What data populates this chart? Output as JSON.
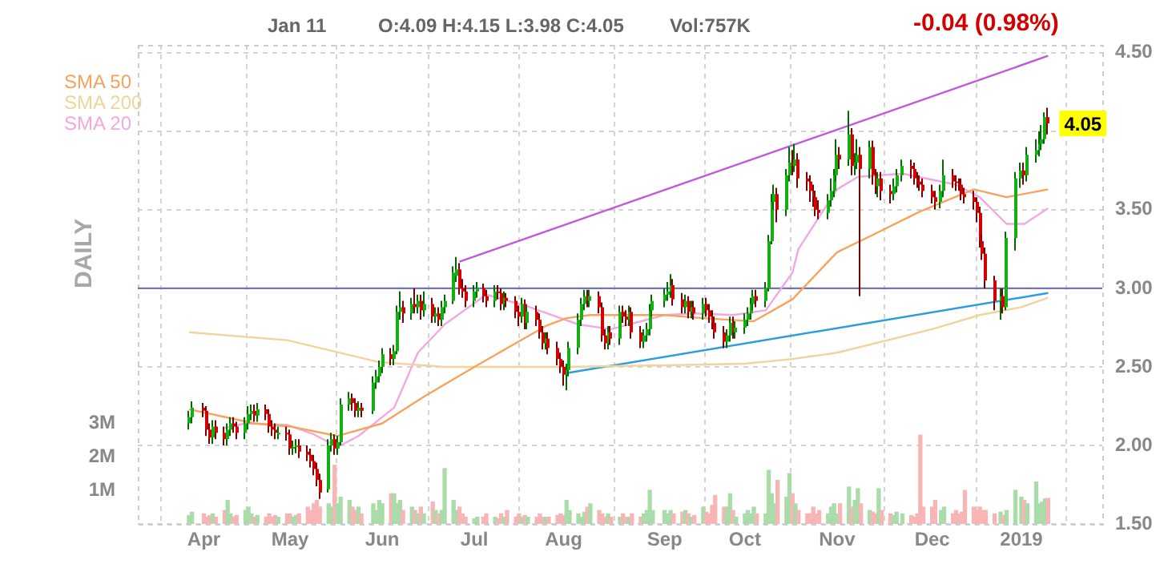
{
  "chart_data": {
    "type": "candlestick",
    "annotations": [
      "Jan 11",
      "O:4.09  H:4.15  L:3.98  C:4.05",
      "Vol:757K",
      "-0.04 (0.98%)",
      "DAILY",
      {
        "text": "4.05",
        "x": "2019-01-11",
        "y": 4.05
      }
    ],
    "x": [
      "2018-03-28",
      "2018-03-29",
      "2018-04-02",
      "2018-04-03",
      "2018-04-04",
      "2018-04-05",
      "2018-04-06",
      "2018-04-09",
      "2018-04-10",
      "2018-04-11",
      "2018-04-12",
      "2018-04-13",
      "2018-04-16",
      "2018-04-17",
      "2018-04-18",
      "2018-04-19",
      "2018-04-20",
      "2018-04-23",
      "2018-04-24",
      "2018-04-25",
      "2018-04-26",
      "2018-04-27",
      "2018-04-30",
      "2018-05-01",
      "2018-05-02",
      "2018-05-03",
      "2018-05-04",
      "2018-05-07",
      "2018-05-08",
      "2018-05-09",
      "2018-05-10",
      "2018-05-11",
      "2018-05-14",
      "2018-05-15",
      "2018-05-16",
      "2018-05-17",
      "2018-05-18",
      "2018-05-21",
      "2018-05-22",
      "2018-05-23",
      "2018-05-24",
      "2018-05-25",
      "2018-05-29",
      "2018-05-30",
      "2018-05-31",
      "2018-06-01",
      "2018-06-04",
      "2018-06-05",
      "2018-06-06",
      "2018-06-07",
      "2018-06-08",
      "2018-06-11",
      "2018-06-12",
      "2018-06-13",
      "2018-06-14",
      "2018-06-15",
      "2018-06-18",
      "2018-06-19",
      "2018-06-20",
      "2018-06-21",
      "2018-06-22",
      "2018-06-25",
      "2018-06-26",
      "2018-06-27",
      "2018-06-28",
      "2018-06-29",
      "2018-07-02",
      "2018-07-03",
      "2018-07-05",
      "2018-07-06",
      "2018-07-09",
      "2018-07-10",
      "2018-07-11",
      "2018-07-12",
      "2018-07-13",
      "2018-07-16",
      "2018-07-17",
      "2018-07-18",
      "2018-07-19",
      "2018-07-20",
      "2018-07-23",
      "2018-07-24",
      "2018-07-25",
      "2018-07-26",
      "2018-07-27",
      "2018-07-30",
      "2018-07-31",
      "2018-08-01",
      "2018-08-02",
      "2018-08-03",
      "2018-08-06",
      "2018-08-07",
      "2018-08-08",
      "2018-08-09",
      "2018-08-10",
      "2018-08-13",
      "2018-08-14",
      "2018-08-15",
      "2018-08-16",
      "2018-08-17",
      "2018-08-20",
      "2018-08-21",
      "2018-08-22",
      "2018-08-23",
      "2018-08-24",
      "2018-08-27",
      "2018-08-28",
      "2018-08-29",
      "2018-08-30",
      "2018-08-31",
      "2018-09-04",
      "2018-09-05",
      "2018-09-06",
      "2018-09-07",
      "2018-09-10",
      "2018-09-11",
      "2018-09-12",
      "2018-09-13",
      "2018-09-14",
      "2018-09-17",
      "2018-09-18",
      "2018-09-19",
      "2018-09-20",
      "2018-09-21",
      "2018-09-24",
      "2018-09-25",
      "2018-09-26",
      "2018-09-27",
      "2018-09-28",
      "2018-10-01",
      "2018-10-02",
      "2018-10-03",
      "2018-10-04",
      "2018-10-05",
      "2018-10-08",
      "2018-10-09",
      "2018-10-10",
      "2018-10-11",
      "2018-10-12",
      "2018-10-15",
      "2018-10-16",
      "2018-10-17",
      "2018-10-18",
      "2018-10-19",
      "2018-10-22",
      "2018-10-23",
      "2018-10-24",
      "2018-10-25",
      "2018-10-26",
      "2018-10-29",
      "2018-10-30",
      "2018-10-31",
      "2018-11-01",
      "2018-11-02",
      "2018-11-05",
      "2018-11-06",
      "2018-11-07",
      "2018-11-08",
      "2018-11-09",
      "2018-11-12",
      "2018-11-13",
      "2018-11-14",
      "2018-11-15",
      "2018-11-16",
      "2018-11-19",
      "2018-11-20",
      "2018-11-21",
      "2018-11-23",
      "2018-11-26",
      "2018-11-27",
      "2018-11-28",
      "2018-11-29",
      "2018-11-30",
      "2018-12-03",
      "2018-12-04",
      "2018-12-06",
      "2018-12-07",
      "2018-12-10",
      "2018-12-11",
      "2018-12-12",
      "2018-12-13",
      "2018-12-14",
      "2018-12-17",
      "2018-12-18",
      "2018-12-19",
      "2018-12-20",
      "2018-12-21",
      "2018-12-24",
      "2018-12-26",
      "2018-12-27",
      "2018-12-28",
      "2018-12-31",
      "2019-01-02",
      "2019-01-03",
      "2019-01-04",
      "2019-01-07",
      "2019-01-08",
      "2019-01-09",
      "2019-01-10",
      "2019-01-11"
    ],
    "ohlc": [
      [
        2.14,
        2.22,
        2.1,
        2.18
      ],
      [
        2.18,
        2.28,
        2.14,
        2.24
      ],
      [
        2.24,
        2.27,
        2.18,
        2.22
      ],
      [
        2.22,
        2.25,
        2.06,
        2.1
      ],
      [
        2.1,
        2.14,
        2.01,
        2.05
      ],
      [
        2.05,
        2.16,
        2.01,
        2.12
      ],
      [
        2.12,
        2.16,
        2.04,
        2.08
      ],
      [
        2.08,
        2.12,
        2.0,
        2.04
      ],
      [
        2.04,
        2.14,
        2.0,
        2.1
      ],
      [
        2.1,
        2.18,
        2.06,
        2.14
      ],
      [
        2.14,
        2.18,
        2.08,
        2.12
      ],
      [
        2.12,
        2.15,
        2.04,
        2.08
      ],
      [
        2.08,
        2.18,
        2.04,
        2.14
      ],
      [
        2.14,
        2.25,
        2.1,
        2.2
      ],
      [
        2.2,
        2.26,
        2.16,
        2.22
      ],
      [
        2.22,
        2.26,
        2.15,
        2.19
      ],
      [
        2.19,
        2.27,
        2.15,
        2.23
      ],
      [
        2.23,
        2.26,
        2.16,
        2.2
      ],
      [
        2.2,
        2.23,
        2.08,
        2.12
      ],
      [
        2.12,
        2.16,
        2.06,
        2.1
      ],
      [
        2.1,
        2.14,
        2.04,
        2.08
      ],
      [
        2.08,
        2.12,
        2.04,
        2.08
      ],
      [
        2.08,
        2.12,
        2.03,
        2.07
      ],
      [
        2.07,
        2.1,
        1.94,
        1.98
      ],
      [
        1.98,
        2.03,
        1.94,
        1.99
      ],
      [
        1.99,
        2.04,
        1.95,
        2.0
      ],
      [
        2.0,
        2.04,
        1.92,
        1.96
      ],
      [
        1.96,
        2.0,
        1.9,
        1.94
      ],
      [
        1.94,
        1.98,
        1.86,
        1.9
      ],
      [
        1.9,
        1.94,
        1.81,
        1.85
      ],
      [
        1.85,
        1.89,
        1.74,
        1.78
      ],
      [
        1.78,
        1.82,
        1.66,
        1.7
      ],
      [
        1.72,
        2.04,
        1.7,
        2.0
      ],
      [
        2.0,
        2.08,
        1.96,
        2.04
      ],
      [
        2.04,
        2.07,
        1.94,
        1.98
      ],
      [
        1.98,
        2.06,
        1.94,
        2.02
      ],
      [
        2.02,
        2.3,
        2.0,
        2.26
      ],
      [
        2.26,
        2.34,
        2.22,
        2.3
      ],
      [
        2.3,
        2.33,
        2.22,
        2.27
      ],
      [
        2.27,
        2.3,
        2.18,
        2.22
      ],
      [
        2.22,
        2.28,
        2.18,
        2.24
      ],
      [
        2.24,
        2.27,
        2.18,
        2.22
      ],
      [
        2.22,
        2.44,
        2.2,
        2.4
      ],
      [
        2.4,
        2.48,
        2.36,
        2.44
      ],
      [
        2.44,
        2.54,
        2.4,
        2.5
      ],
      [
        2.5,
        2.62,
        2.46,
        2.58
      ],
      [
        2.58,
        2.62,
        2.51,
        2.55
      ],
      [
        2.55,
        2.64,
        2.51,
        2.6
      ],
      [
        2.6,
        2.89,
        2.58,
        2.85
      ],
      [
        2.85,
        2.98,
        2.8,
        2.88
      ],
      [
        2.88,
        2.92,
        2.78,
        2.84
      ],
      [
        2.84,
        2.94,
        2.8,
        2.9
      ],
      [
        2.9,
        3.0,
        2.84,
        2.88
      ],
      [
        2.88,
        2.96,
        2.84,
        2.92
      ],
      [
        2.92,
        2.96,
        2.8,
        2.86
      ],
      [
        2.86,
        2.98,
        2.82,
        2.9
      ],
      [
        2.9,
        2.94,
        2.78,
        2.82
      ],
      [
        2.82,
        2.88,
        2.78,
        2.84
      ],
      [
        2.84,
        2.88,
        2.76,
        2.8
      ],
      [
        2.8,
        2.92,
        2.76,
        2.88
      ],
      [
        2.88,
        2.96,
        2.84,
        2.92
      ],
      [
        2.92,
        3.14,
        2.9,
        3.1
      ],
      [
        3.08,
        3.2,
        3.04,
        3.12
      ],
      [
        3.12,
        3.16,
        2.96,
        3.0
      ],
      [
        3.0,
        3.06,
        2.94,
        2.98
      ],
      [
        2.98,
        3.02,
        2.88,
        2.92
      ],
      [
        2.92,
        3.02,
        2.88,
        2.98
      ],
      [
        2.98,
        3.04,
        2.94,
        3.0
      ],
      [
        3.0,
        3.03,
        2.91,
        2.95
      ],
      [
        2.95,
        2.99,
        2.88,
        2.92
      ],
      [
        2.92,
        3.02,
        2.88,
        2.98
      ],
      [
        2.98,
        3.02,
        2.93,
        2.97
      ],
      [
        2.97,
        3.0,
        2.86,
        2.9
      ],
      [
        2.9,
        2.98,
        2.86,
        2.94
      ],
      [
        2.94,
        2.97,
        2.88,
        2.92
      ],
      [
        2.92,
        2.95,
        2.81,
        2.85
      ],
      [
        2.85,
        2.89,
        2.76,
        2.82
      ],
      [
        2.82,
        2.94,
        2.78,
        2.9
      ],
      [
        2.9,
        2.93,
        2.74,
        2.78
      ],
      [
        2.78,
        2.89,
        2.74,
        2.85
      ],
      [
        2.85,
        2.89,
        2.76,
        2.8
      ],
      [
        2.8,
        2.84,
        2.68,
        2.72
      ],
      [
        2.72,
        2.76,
        2.61,
        2.65
      ],
      [
        2.65,
        2.72,
        2.61,
        2.68
      ],
      [
        2.68,
        2.72,
        2.58,
        2.62
      ],
      [
        2.62,
        2.66,
        2.51,
        2.55
      ],
      [
        2.55,
        2.59,
        2.46,
        2.5
      ],
      [
        2.5,
        2.54,
        2.38,
        2.45
      ],
      [
        2.45,
        2.52,
        2.35,
        2.48
      ],
      [
        2.48,
        2.66,
        2.44,
        2.62
      ],
      [
        2.62,
        2.84,
        2.58,
        2.8
      ],
      [
        2.8,
        2.94,
        2.76,
        2.9
      ],
      [
        2.9,
        2.99,
        2.86,
        2.95
      ],
      [
        2.95,
        2.99,
        2.88,
        2.92
      ],
      [
        2.92,
        2.99,
        2.88,
        2.95
      ],
      [
        2.95,
        2.98,
        2.84,
        2.88
      ],
      [
        2.88,
        2.91,
        2.66,
        2.7
      ],
      [
        2.7,
        2.74,
        2.61,
        2.65
      ],
      [
        2.65,
        2.76,
        2.61,
        2.72
      ],
      [
        2.72,
        2.76,
        2.64,
        2.68
      ],
      [
        2.68,
        2.89,
        2.64,
        2.85
      ],
      [
        2.85,
        2.89,
        2.78,
        2.82
      ],
      [
        2.82,
        2.86,
        2.76,
        2.8
      ],
      [
        2.8,
        2.89,
        2.76,
        2.85
      ],
      [
        2.85,
        2.88,
        2.68,
        2.72
      ],
      [
        2.72,
        2.76,
        2.62,
        2.66
      ],
      [
        2.66,
        2.74,
        2.62,
        2.7
      ],
      [
        2.7,
        2.78,
        2.66,
        2.74
      ],
      [
        2.74,
        2.9,
        2.7,
        2.86
      ],
      [
        2.86,
        2.96,
        2.82,
        2.92
      ],
      [
        2.92,
        3.0,
        2.88,
        2.96
      ],
      [
        2.96,
        3.04,
        2.92,
        2.98
      ],
      [
        2.98,
        3.09,
        2.94,
        3.02
      ],
      [
        3.02,
        3.06,
        2.89,
        2.93
      ],
      [
        2.93,
        2.97,
        2.84,
        2.88
      ],
      [
        2.88,
        2.96,
        2.84,
        2.92
      ],
      [
        2.92,
        2.95,
        2.81,
        2.85
      ],
      [
        2.85,
        2.92,
        2.81,
        2.88
      ],
      [
        2.88,
        2.92,
        2.8,
        2.84
      ],
      [
        2.84,
        2.94,
        2.8,
        2.9
      ],
      [
        2.9,
        2.94,
        2.82,
        2.86
      ],
      [
        2.86,
        2.9,
        2.78,
        2.82
      ],
      [
        2.82,
        2.86,
        2.74,
        2.78
      ],
      [
        2.78,
        2.82,
        2.68,
        2.72
      ],
      [
        2.72,
        2.76,
        2.62,
        2.66
      ],
      [
        2.66,
        2.74,
        2.62,
        2.7
      ],
      [
        2.7,
        2.82,
        2.66,
        2.78
      ],
      [
        2.78,
        2.82,
        2.68,
        2.72
      ],
      [
        2.72,
        2.79,
        2.68,
        2.75
      ],
      [
        2.75,
        2.84,
        2.71,
        2.8
      ],
      [
        2.8,
        2.88,
        2.76,
        2.84
      ],
      [
        2.84,
        2.94,
        2.8,
        2.9
      ],
      [
        2.9,
        2.99,
        2.86,
        2.95
      ],
      [
        2.95,
        2.99,
        2.88,
        2.92
      ],
      [
        2.92,
        3.04,
        2.88,
        3.0
      ],
      [
        3.0,
        3.34,
        2.98,
        3.3
      ],
      [
        3.3,
        3.6,
        3.28,
        3.55
      ],
      [
        3.55,
        3.66,
        3.5,
        3.6
      ],
      [
        3.6,
        3.64,
        3.42,
        3.5
      ],
      [
        3.5,
        3.76,
        3.46,
        3.72
      ],
      [
        3.72,
        3.9,
        3.68,
        3.8
      ],
      [
        3.8,
        3.88,
        3.72,
        3.78
      ],
      [
        3.78,
        3.92,
        3.74,
        3.82
      ],
      [
        3.82,
        3.86,
        3.64,
        3.7
      ],
      [
        3.7,
        3.74,
        3.62,
        3.68
      ],
      [
        3.68,
        3.72,
        3.55,
        3.62
      ],
      [
        3.62,
        3.66,
        3.52,
        3.58
      ],
      [
        3.58,
        3.62,
        3.46,
        3.5
      ],
      [
        3.5,
        3.56,
        3.44,
        3.48
      ],
      [
        3.48,
        3.6,
        3.44,
        3.56
      ],
      [
        3.56,
        3.7,
        3.52,
        3.62
      ],
      [
        3.62,
        3.76,
        3.58,
        3.72
      ],
      [
        3.72,
        3.95,
        3.68,
        3.85
      ],
      [
        3.85,
        3.9,
        3.76,
        3.82
      ],
      [
        3.82,
        4.13,
        3.78,
        3.98
      ],
      [
        3.98,
        4.02,
        3.72,
        3.78
      ],
      [
        3.78,
        3.86,
        3.72,
        3.8
      ],
      [
        3.8,
        3.95,
        3.76,
        3.85
      ],
      [
        3.85,
        3.9,
        2.95,
        3.76
      ],
      [
        3.76,
        3.94,
        3.7,
        3.9
      ],
      [
        3.9,
        3.94,
        3.66,
        3.72
      ],
      [
        3.72,
        3.76,
        3.6,
        3.65
      ],
      [
        3.65,
        3.74,
        3.58,
        3.7
      ],
      [
        3.7,
        3.74,
        3.56,
        3.62
      ],
      [
        3.62,
        3.66,
        3.54,
        3.6
      ],
      [
        3.6,
        3.7,
        3.56,
        3.65
      ],
      [
        3.65,
        3.76,
        3.61,
        3.72
      ],
      [
        3.72,
        3.82,
        3.68,
        3.78
      ],
      [
        3.78,
        3.82,
        3.7,
        3.76
      ],
      [
        3.76,
        3.8,
        3.66,
        3.7
      ],
      [
        3.7,
        3.74,
        3.64,
        3.68
      ],
      [
        3.68,
        3.72,
        3.62,
        3.66
      ],
      [
        3.66,
        3.7,
        3.58,
        3.62
      ],
      [
        3.62,
        3.66,
        3.54,
        3.58
      ],
      [
        3.58,
        3.62,
        3.5,
        3.55
      ],
      [
        3.55,
        3.66,
        3.51,
        3.62
      ],
      [
        3.62,
        3.82,
        3.58,
        3.72
      ],
      [
        3.72,
        3.76,
        3.64,
        3.68
      ],
      [
        3.68,
        3.72,
        3.62,
        3.67
      ],
      [
        3.67,
        3.7,
        3.62,
        3.66
      ],
      [
        3.66,
        3.7,
        3.56,
        3.6
      ],
      [
        3.6,
        3.64,
        3.54,
        3.58
      ],
      [
        3.58,
        3.62,
        3.5,
        3.55
      ],
      [
        3.55,
        3.58,
        3.42,
        3.48
      ],
      [
        3.48,
        3.52,
        3.26,
        3.3
      ],
      [
        3.3,
        3.34,
        3.18,
        3.22
      ],
      [
        3.22,
        3.26,
        3.0,
        3.05
      ],
      [
        3.05,
        3.08,
        2.86,
        2.92
      ],
      [
        2.92,
        3.0,
        2.8,
        2.95
      ],
      [
        2.95,
        3.0,
        2.84,
        2.88
      ],
      [
        2.88,
        3.36,
        2.86,
        3.32
      ],
      [
        3.32,
        3.74,
        3.24,
        3.7
      ],
      [
        3.7,
        3.8,
        3.64,
        3.75
      ],
      [
        3.75,
        3.8,
        3.66,
        3.72
      ],
      [
        3.72,
        3.9,
        3.68,
        3.85
      ],
      [
        3.85,
        3.95,
        3.8,
        3.88
      ],
      [
        3.88,
        4.0,
        3.84,
        3.92
      ],
      [
        3.92,
        4.04,
        3.88,
        3.95
      ],
      [
        3.95,
        4.12,
        3.92,
        4.09
      ],
      [
        4.09,
        4.15,
        3.98,
        4.05
      ]
    ],
    "series": [
      {
        "name": "SMA 50",
        "type": "line",
        "color": "#f7a35c",
        "x": [
          "2018-03-28",
          "2018-04-19",
          "2018-05-01",
          "2018-05-17",
          "2018-06-01",
          "2018-06-15",
          "2018-07-02",
          "2018-07-26",
          "2018-08-02",
          "2018-08-10",
          "2018-09-04",
          "2018-09-17",
          "2018-10-04",
          "2018-10-17",
          "2018-11-01",
          "2018-11-13",
          "2018-11-29",
          "2018-12-17",
          "2018-12-28",
          "2019-01-11"
        ],
        "values": [
          2.23,
          2.14,
          2.12,
          2.06,
          2.14,
          2.31,
          2.5,
          2.76,
          2.81,
          2.83,
          2.83,
          2.81,
          2.79,
          2.93,
          3.23,
          3.34,
          3.49,
          3.63,
          3.58,
          3.63
        ]
      },
      {
        "name": "SMA 200",
        "type": "line",
        "color": "#f0d49c",
        "x": [
          "2018-03-28",
          "2018-04-30",
          "2018-05-31",
          "2018-06-22",
          "2018-08-01",
          "2018-09-04",
          "2018-10-01",
          "2018-10-17",
          "2018-11-01",
          "2018-12-03",
          "2018-12-19",
          "2019-01-02",
          "2019-01-11"
        ],
        "values": [
          2.72,
          2.67,
          2.53,
          2.5,
          2.5,
          2.51,
          2.52,
          2.55,
          2.59,
          2.74,
          2.83,
          2.88,
          2.94
        ]
      },
      {
        "name": "SMA 20",
        "type": "line",
        "color": "#f2a8e0",
        "x": [
          "2018-04-09",
          "2018-04-16",
          "2018-04-30",
          "2018-05-09",
          "2018-05-17",
          "2018-05-24",
          "2018-06-05",
          "2018-06-13",
          "2018-06-22",
          "2018-07-06",
          "2018-07-19",
          "2018-08-06",
          "2018-08-17",
          "2018-09-04",
          "2018-09-14",
          "2018-09-27",
          "2018-10-08",
          "2018-10-17",
          "2018-10-19",
          "2018-11-01",
          "2018-11-08",
          "2018-11-23",
          "2018-12-11",
          "2018-12-19",
          "2018-12-28",
          "2019-01-03",
          "2019-01-11"
        ],
        "values": [
          2.11,
          2.14,
          2.13,
          2.07,
          1.99,
          2.06,
          2.24,
          2.59,
          2.77,
          2.96,
          2.89,
          2.77,
          2.74,
          2.83,
          2.84,
          2.83,
          2.86,
          3.1,
          3.25,
          3.63,
          3.71,
          3.73,
          3.66,
          3.58,
          3.41,
          3.41,
          3.51
        ]
      },
      {
        "type": "line",
        "color": "#c05ad8",
        "x": [
          "2018-06-27",
          "2019-01-11"
        ],
        "values": [
          3.17,
          4.48
        ]
      },
      {
        "type": "line",
        "color": "#2a9ee0",
        "x": [
          "2018-08-02",
          "2019-01-11"
        ],
        "values": [
          2.46,
          2.97
        ]
      },
      {
        "type": "bar",
        "axis": "y2",
        "values": [
          0.25,
          0.35,
          0.3,
          0.2,
          0.25,
          0.3,
          0.2,
          0.4,
          0.7,
          0.3,
          0.2,
          0.25,
          0.4,
          0.5,
          0.3,
          0.2,
          0.25,
          0.2,
          0.3,
          0.2,
          0.25,
          0.2,
          0.3,
          0.3,
          0.2,
          0.25,
          0.3,
          0.5,
          0.4,
          0.6,
          0.7,
          0.5,
          0.6,
          0.5,
          1.75,
          0.6,
          0.8,
          0.7,
          0.5,
          0.4,
          0.5,
          0.3,
          0.6,
          0.4,
          0.7,
          0.6,
          0.9,
          0.9,
          0.6,
          0.7,
          0.4,
          0.5,
          0.4,
          0.3,
          0.5,
          0.3,
          0.65,
          0.4,
          0.3,
          0.4,
          1.65,
          0.7,
          0.4,
          0.5,
          0.3,
          0.2,
          0.15,
          0.2,
          0.2,
          0.3,
          0.2,
          0.15,
          0.3,
          0.2,
          0.4,
          0.2,
          0.3,
          0.2,
          0.25,
          0.2,
          0.2,
          0.3,
          0.2,
          0.2,
          0.2,
          0.25,
          0.3,
          0.25,
          0.7,
          0.4,
          0.3,
          0.2,
          0.35,
          0.5,
          0.6,
          0.4,
          0.3,
          0.2,
          0.3,
          0.2,
          0.2,
          0.3,
          0.2,
          0.2,
          0.3,
          0.2,
          0.3,
          0.4,
          1.0,
          0.4,
          0.4,
          0.3,
          0.4,
          0.3,
          0.35,
          0.4,
          0.3,
          0.2,
          0.25,
          0.5,
          0.35,
          0.3,
          0.55,
          0.85,
          0.5,
          0.5,
          0.9,
          0.4,
          0.2,
          0.3,
          0.4,
          0.3,
          0.5,
          0.3,
          0.3,
          1.6,
          0.9,
          0.6,
          1.3,
          0.8,
          1.5,
          0.9,
          0.6,
          0.4,
          0.3,
          0.3,
          0.5,
          0.3,
          0.4,
          0.3,
          0.5,
          0.6,
          0.3,
          0.6,
          1.1,
          0.5,
          0.7,
          1.05,
          0.6,
          0.4,
          0.35,
          0.3,
          1.05,
          0.4,
          0.3,
          0.25,
          0.35,
          0.3,
          0.25,
          0.2,
          0.3,
          2.65,
          0.5,
          0.5,
          0.7,
          0.4,
          0.5,
          0.3,
          0.4,
          0.3,
          0.35,
          1.0,
          0.5,
          0.4,
          0.5,
          0.4,
          0.4,
          0.3,
          0.35,
          0.25,
          0.4,
          1.0,
          0.8,
          0.7,
          0.6,
          1.25,
          0.6,
          0.65,
          0.75,
          0.76
        ],
        "colors": [
          "#a9dca9",
          "#a9dca9",
          "#f7b5b5",
          "#f7b5b5",
          "#f7b5b5",
          "#a9dca9",
          "#f7b5b5",
          "#f7b5b5",
          "#a9dca9",
          "#a9dca9",
          "#f7b5b5",
          "#f7b5b5",
          "#a9dca9",
          "#a9dca9",
          "#a9dca9",
          "#f7b5b5",
          "#a9dca9",
          "#f7b5b5",
          "#f7b5b5",
          "#f7b5b5",
          "#f7b5b5",
          "#a9dca9",
          "#f7b5b5",
          "#f7b5b5",
          "#a9dca9",
          "#a9dca9",
          "#f7b5b5",
          "#f7b5b5",
          "#f7b5b5",
          "#f7b5b5",
          "#f7b5b5",
          "#f7b5b5",
          "#a9dca9",
          "#a9dca9",
          "#f7b5b5",
          "#a9dca9",
          "#a9dca9",
          "#a9dca9",
          "#f7b5b5",
          "#f7b5b5",
          "#a9dca9",
          "#f7b5b5",
          "#a9dca9",
          "#a9dca9",
          "#a9dca9",
          "#a9dca9",
          "#f7b5b5",
          "#a9dca9",
          "#a9dca9",
          "#a9dca9",
          "#f7b5b5",
          "#a9dca9",
          "#f7b5b5",
          "#a9dca9",
          "#f7b5b5",
          "#a9dca9",
          "#f7b5b5",
          "#a9dca9",
          "#f7b5b5",
          "#a9dca9",
          "#a9dca9",
          "#a9dca9",
          "#a9dca9",
          "#f7b5b5",
          "#f7b5b5",
          "#f7b5b5",
          "#a9dca9",
          "#a9dca9",
          "#f7b5b5",
          "#f7b5b5",
          "#a9dca9",
          "#f7b5b5",
          "#f7b5b5",
          "#a9dca9",
          "#f7b5b5",
          "#f7b5b5",
          "#f7b5b5",
          "#a9dca9",
          "#f7b5b5",
          "#a9dca9",
          "#f7b5b5",
          "#f7b5b5",
          "#f7b5b5",
          "#a9dca9",
          "#f7b5b5",
          "#f7b5b5",
          "#f7b5b5",
          "#f7b5b5",
          "#a9dca9",
          "#a9dca9",
          "#a9dca9",
          "#a9dca9",
          "#a9dca9",
          "#f7b5b5",
          "#a9dca9",
          "#f7b5b5",
          "#f7b5b5",
          "#f7b5b5",
          "#a9dca9",
          "#f7b5b5",
          "#a9dca9",
          "#f7b5b5",
          "#f7b5b5",
          "#a9dca9",
          "#f7b5b5",
          "#f7b5b5",
          "#a9dca9",
          "#a9dca9",
          "#a9dca9",
          "#a9dca9",
          "#a9dca9",
          "#a9dca9",
          "#a9dca9",
          "#f7b5b5",
          "#f7b5b5",
          "#a9dca9",
          "#f7b5b5",
          "#a9dca9",
          "#f7b5b5",
          "#a9dca9",
          "#f7b5b5",
          "#f7b5b5",
          "#f7b5b5",
          "#f7b5b5",
          "#f7b5b5",
          "#a9dca9",
          "#a9dca9",
          "#f7b5b5",
          "#a9dca9",
          "#a9dca9",
          "#a9dca9",
          "#a9dca9",
          "#a9dca9",
          "#f7b5b5",
          "#a9dca9",
          "#a9dca9",
          "#a9dca9",
          "#a9dca9",
          "#f7b5b5",
          "#a9dca9",
          "#a9dca9",
          "#f7b5b5",
          "#a9dca9",
          "#f7b5b5",
          "#f7b5b5",
          "#f7b5b5",
          "#f7b5b5",
          "#f7b5b5",
          "#f7b5b5",
          "#a9dca9",
          "#a9dca9",
          "#a9dca9",
          "#a9dca9",
          "#f7b5b5",
          "#a9dca9",
          "#f7b5b5",
          "#a9dca9",
          "#a9dca9",
          "#f7b5b5",
          "#a9dca9",
          "#f7b5b5",
          "#f7b5b5",
          "#a9dca9",
          "#f7b5b5",
          "#f7b5b5",
          "#a9dca9",
          "#a9dca9",
          "#a9dca9",
          "#f7b5b5",
          "#f7b5b5",
          "#f7b5b5",
          "#f7b5b5",
          "#f7b5b5",
          "#f7b5b5",
          "#f7b5b5",
          "#a9dca9",
          "#a9dca9",
          "#f7b5b5",
          "#f7b5b5",
          "#f7b5b5",
          "#f7b5b5",
          "#f7b5b5",
          "#f7b5b5",
          "#f7b5b5",
          "#f7b5b5",
          "#f7b5b5",
          "#f7b5b5",
          "#f7b5b5",
          "#a9dca9",
          "#f7b5b5",
          "#a9dca9",
          "#a9dca9",
          "#a9dca9",
          "#f7b5b5",
          "#a9dca9",
          "#a9dca9",
          "#a9dca9",
          "#a9dca9",
          "#a9dca9",
          "#f7b5b5"
        ]
      }
    ],
    "ref_lines": [
      {
        "axis": "y",
        "value": 3.0,
        "color": "#7474b4"
      }
    ],
    "xlim": [
      "2018-03-27",
      "2019-01-13"
    ],
    "xticks": [
      {
        "value": "2018-04-02",
        "label": "Apr"
      },
      {
        "value": "2018-05-01",
        "label": "May"
      },
      {
        "value": "2018-06-01",
        "label": "Jun"
      },
      {
        "value": "2018-07-02",
        "label": "Jul"
      },
      {
        "value": "2018-08-01",
        "label": "Aug"
      },
      {
        "value": "2018-09-04",
        "label": "Sep"
      },
      {
        "value": "2018-10-01",
        "label": "Oct"
      },
      {
        "value": "2018-11-01",
        "label": "Nov"
      },
      {
        "value": "2018-12-03",
        "label": "Dec"
      },
      {
        "value": "2019-01-02",
        "label": "2019"
      }
    ],
    "ylim": [
      1.5,
      4.55
    ],
    "yticks": [
      {
        "value": 1.5,
        "label": "1.50"
      },
      {
        "value": 2,
        "label": "2.00"
      },
      {
        "value": 2.5,
        "label": "2.50"
      },
      {
        "value": 3,
        "label": "3.00"
      },
      {
        "value": 3.5,
        "label": "3.50"
      },
      {
        "value": 4,
        "label": null
      },
      {
        "value": 4.5,
        "label": "4.50"
      }
    ],
    "y2lim": [
      0,
      14.3
    ],
    "y2ticks": [
      {
        "value": 1,
        "label": "1M"
      },
      {
        "value": 2,
        "label": "2M"
      },
      {
        "value": 3,
        "label": "3M"
      }
    ],
    "grid": true,
    "legend": "top left"
  }
}
